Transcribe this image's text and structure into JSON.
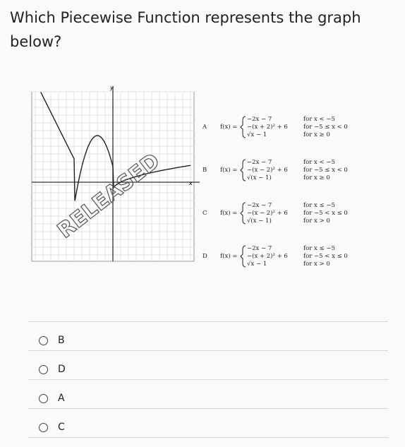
{
  "question": "Which Piecewise Function represents the graph below?",
  "figure": {
    "y_label": "y",
    "x_label": "x",
    "watermark": "RELEASED",
    "options": [
      {
        "letter": "A",
        "lhs": "f(x) =",
        "pieces": [
          {
            "expr": "−2x − 7",
            "cond": "for  x < −5"
          },
          {
            "expr": "−(x + 2)² + 6",
            "cond": "for  −5 ≤ x < 0"
          },
          {
            "expr": "√x − 1",
            "cond": "for  x ≥ 0"
          }
        ]
      },
      {
        "letter": "B",
        "lhs": "f(x) =",
        "pieces": [
          {
            "expr": "−2x − 7",
            "cond": "for  x < −5"
          },
          {
            "expr": "−(x − 2)² + 6",
            "cond": "for  −5 ≤ x < 0"
          },
          {
            "expr": "√(x − 1)",
            "cond": "for  x ≥ 0"
          }
        ]
      },
      {
        "letter": "C",
        "lhs": "f(x) =",
        "pieces": [
          {
            "expr": "−2x − 7",
            "cond": "for  x ≤ −5"
          },
          {
            "expr": "−(x − 2)² + 6",
            "cond": "for  −5 < x ≤ 0"
          },
          {
            "expr": "√(x − 1)",
            "cond": "for  x > 0"
          }
        ]
      },
      {
        "letter": "D",
        "lhs": "f(x) =",
        "pieces": [
          {
            "expr": "−2x − 7",
            "cond": "for  x ≤ −5"
          },
          {
            "expr": "−(x + 2)² + 6",
            "cond": "for  −5 < x ≤ 0"
          },
          {
            "expr": "√x − 1",
            "cond": "for  x > 0"
          }
        ]
      }
    ]
  },
  "choices": [
    "B",
    "D",
    "A",
    "C"
  ]
}
